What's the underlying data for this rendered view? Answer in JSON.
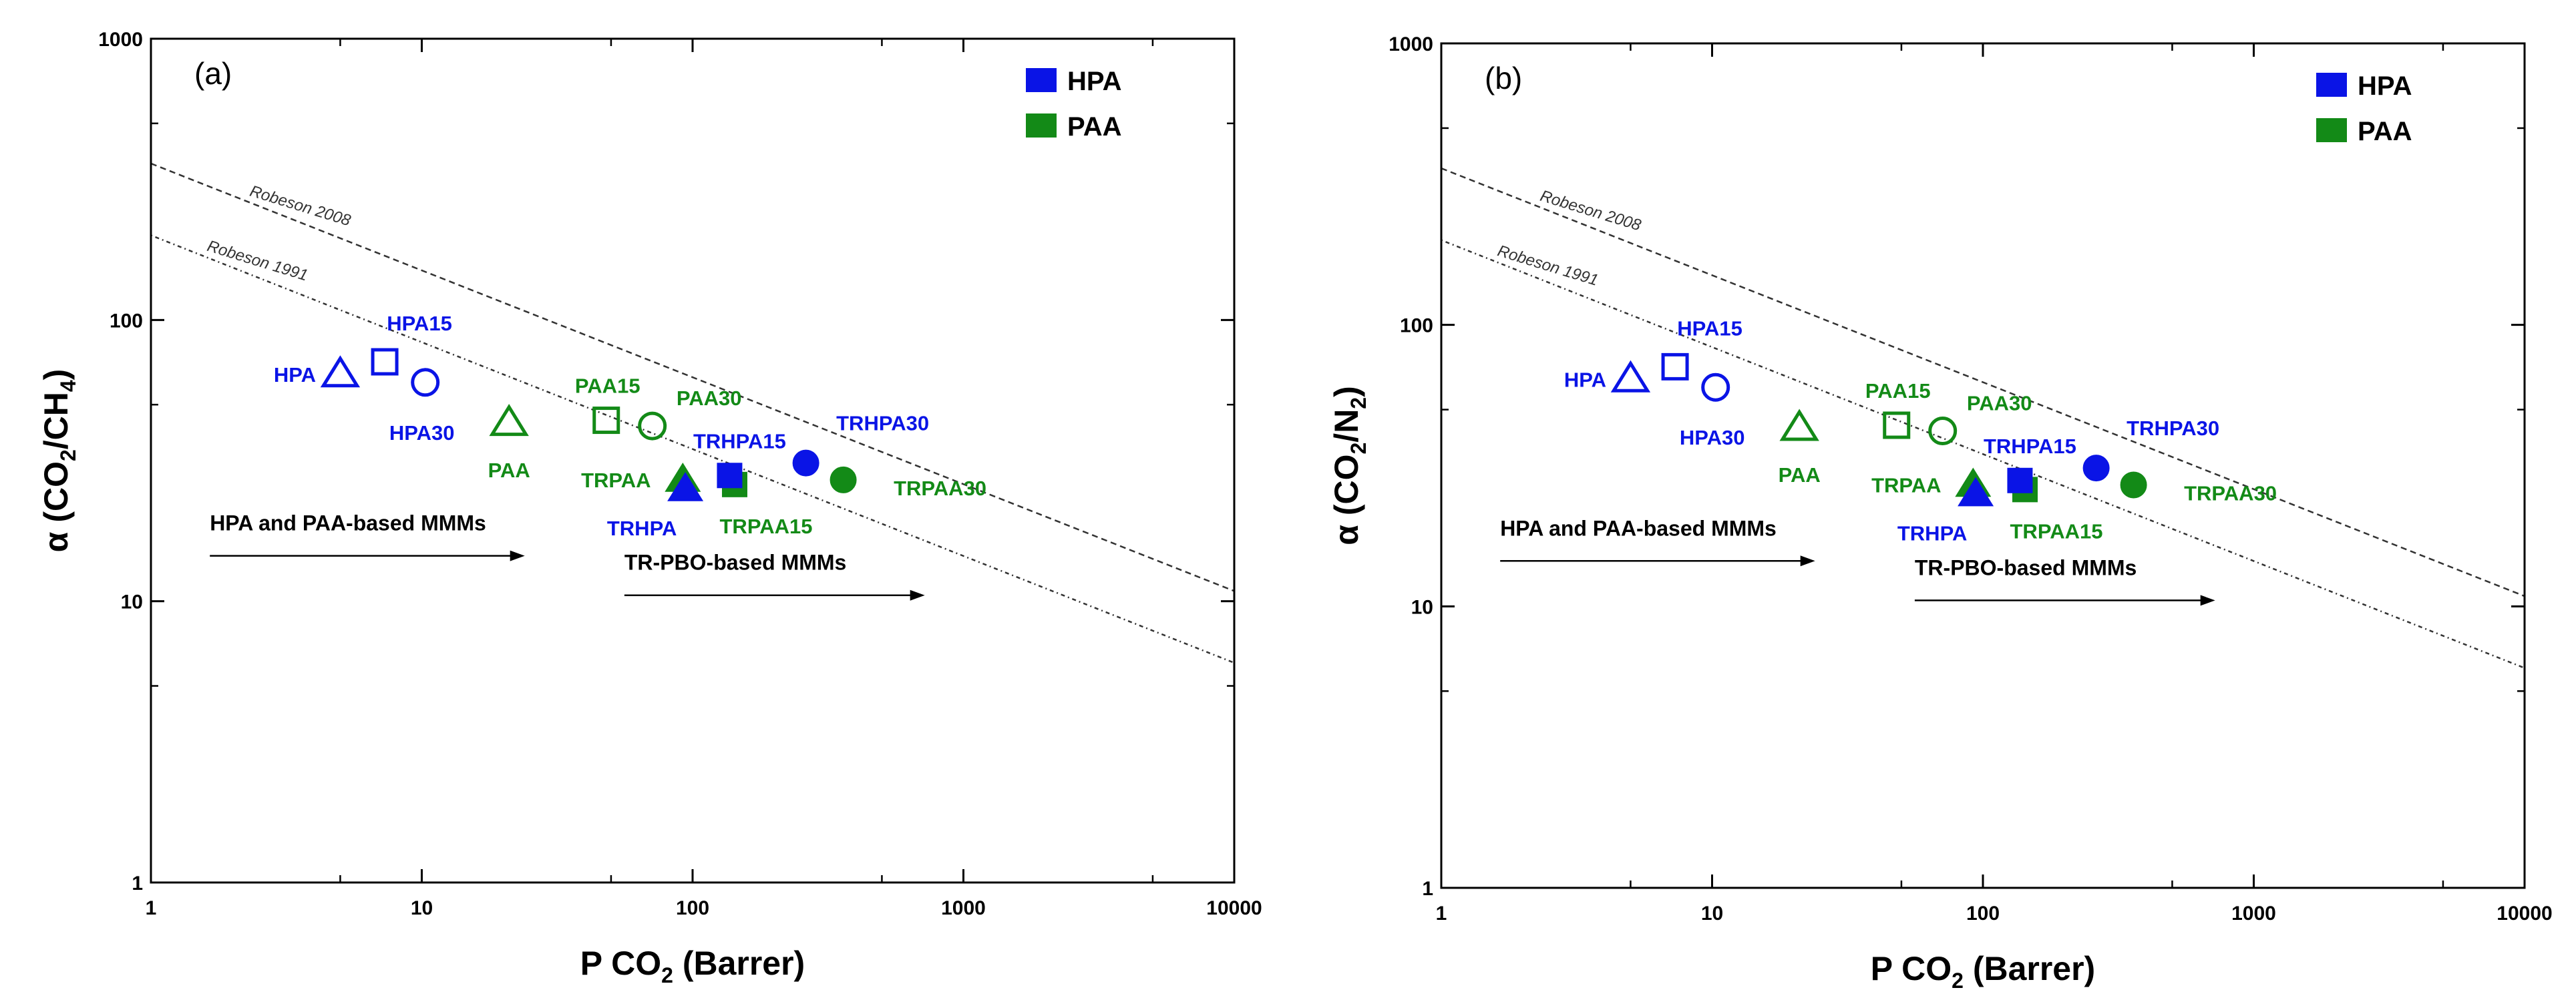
{
  "chart_data": [
    {
      "type": "scatter",
      "panel_label": "(a)",
      "title": "",
      "xlabel": "P CO",
      "xlabel_sub": "2",
      "xlabel_tail": " (Barrer)",
      "ylabel_parts": [
        {
          "t": "α (CO",
          "sub": false
        },
        {
          "t": "2",
          "sub": true
        },
        {
          "t": "/CH",
          "sub": false
        },
        {
          "t": "4",
          "sub": true
        },
        {
          "t": ")",
          "sub": false
        }
      ],
      "xscale": "log",
      "yscale": "log",
      "xlim": [
        1,
        10000
      ],
      "ylim": [
        1,
        1000
      ],
      "xticks": [
        "1",
        "10",
        "100",
        "1000",
        "10000"
      ],
      "yticks": [
        "1",
        "10",
        "100",
        "1000"
      ],
      "grid": false,
      "legend_position": "top-right",
      "legend": [
        {
          "label": "HPA",
          "color": "#0a14e6"
        },
        {
          "label": "PAA",
          "color": "#138a17"
        }
      ],
      "upper_bounds": [
        {
          "label": "Robeson 2008",
          "style": "dashed",
          "k": 360,
          "n": 0.38
        },
        {
          "label": "Robeson 1991",
          "style": "dotted",
          "k": 200,
          "n": 0.38
        }
      ],
      "points": [
        {
          "name": "HPA",
          "x": 5.0,
          "y": 64,
          "marker": "triangle",
          "filled": false,
          "color": "#0a14e6"
        },
        {
          "name": "HPA15",
          "x": 7.3,
          "y": 71,
          "marker": "square",
          "filled": false,
          "color": "#0a14e6"
        },
        {
          "name": "HPA30",
          "x": 10.3,
          "y": 60,
          "marker": "circle",
          "filled": false,
          "color": "#0a14e6"
        },
        {
          "name": "PAA",
          "x": 21,
          "y": 43,
          "marker": "triangle",
          "filled": false,
          "color": "#138a17"
        },
        {
          "name": "PAA15",
          "x": 48,
          "y": 44,
          "marker": "square",
          "filled": false,
          "color": "#138a17"
        },
        {
          "name": "PAA30",
          "x": 71,
          "y": 42,
          "marker": "circle",
          "filled": false,
          "color": "#138a17"
        },
        {
          "name": "TRPAA",
          "x": 92,
          "y": 27,
          "marker": "triangle",
          "filled": true,
          "color": "#138a17"
        },
        {
          "name": "TRHPA",
          "x": 94,
          "y": 25,
          "marker": "triangle",
          "filled": true,
          "color": "#0a14e6"
        },
        {
          "name": "TRPAA15",
          "x": 143,
          "y": 26,
          "marker": "square",
          "filled": true,
          "color": "#138a17"
        },
        {
          "name": "TRHPA15",
          "x": 137,
          "y": 28,
          "marker": "square",
          "filled": true,
          "color": "#0a14e6"
        },
        {
          "name": "TRHPA30",
          "x": 262,
          "y": 31,
          "marker": "circle",
          "filled": true,
          "color": "#0a14e6"
        },
        {
          "name": "TRPAA30",
          "x": 360,
          "y": 27,
          "marker": "circle",
          "filled": true,
          "color": "#138a17"
        }
      ],
      "annotations": [
        {
          "text": "HPA and PAA-based MMMs",
          "x_from": 1.65,
          "x_to": 24,
          "y": 14.5
        },
        {
          "text": "TR-PBO-based MMMs",
          "x_from": 56,
          "x_to": 720,
          "y": 10.5
        }
      ]
    },
    {
      "type": "scatter",
      "panel_label": "(b)",
      "title": "",
      "xlabel": "P CO",
      "xlabel_sub": "2",
      "xlabel_tail": " (Barrer)",
      "ylabel_parts": [
        {
          "t": "α (CO",
          "sub": false
        },
        {
          "t": "2",
          "sub": true
        },
        {
          "t": "/N",
          "sub": false
        },
        {
          "t": "2",
          "sub": true
        },
        {
          "t": ")",
          "sub": false
        }
      ],
      "xscale": "log",
      "yscale": "log",
      "xlim": [
        1,
        10000
      ],
      "ylim": [
        1,
        1000
      ],
      "xticks": [
        "1",
        "10",
        "100",
        "1000",
        "10000"
      ],
      "yticks": [
        "1",
        "10",
        "100",
        "1000"
      ],
      "grid": false,
      "legend_position": "top-right",
      "legend": [
        {
          "label": "HPA",
          "color": "#0a14e6"
        },
        {
          "label": "PAA",
          "color": "#138a17"
        }
      ],
      "upper_bounds": [
        {
          "label": "Robeson 2008",
          "style": "dashed",
          "k": 360,
          "n": 0.38
        },
        {
          "label": "Robeson 1991",
          "style": "dotted",
          "k": 200,
          "n": 0.38
        }
      ],
      "points": [
        {
          "name": "HPA",
          "x": 5.0,
          "y": 64,
          "marker": "triangle",
          "filled": false,
          "color": "#0a14e6"
        },
        {
          "name": "HPA15",
          "x": 7.3,
          "y": 71,
          "marker": "square",
          "filled": false,
          "color": "#0a14e6"
        },
        {
          "name": "HPA30",
          "x": 10.3,
          "y": 60,
          "marker": "circle",
          "filled": false,
          "color": "#0a14e6"
        },
        {
          "name": "PAA",
          "x": 21,
          "y": 43,
          "marker": "triangle",
          "filled": false,
          "color": "#138a17"
        },
        {
          "name": "PAA15",
          "x": 48,
          "y": 44,
          "marker": "square",
          "filled": false,
          "color": "#138a17"
        },
        {
          "name": "PAA30",
          "x": 71,
          "y": 42,
          "marker": "circle",
          "filled": false,
          "color": "#138a17"
        },
        {
          "name": "TRPAA",
          "x": 92,
          "y": 27,
          "marker": "triangle",
          "filled": true,
          "color": "#138a17"
        },
        {
          "name": "TRHPA",
          "x": 94,
          "y": 25,
          "marker": "triangle",
          "filled": true,
          "color": "#0a14e6"
        },
        {
          "name": "TRPAA15",
          "x": 143,
          "y": 26,
          "marker": "square",
          "filled": true,
          "color": "#138a17"
        },
        {
          "name": "TRHPA15",
          "x": 137,
          "y": 28,
          "marker": "square",
          "filled": true,
          "color": "#0a14e6"
        },
        {
          "name": "TRHPA30",
          "x": 262,
          "y": 31,
          "marker": "circle",
          "filled": true,
          "color": "#0a14e6"
        },
        {
          "name": "TRPAA30",
          "x": 360,
          "y": 27,
          "marker": "circle",
          "filled": true,
          "color": "#138a17"
        }
      ],
      "annotations": [
        {
          "text": "HPA and PAA-based MMMs",
          "x_from": 1.65,
          "x_to": 24,
          "y": 14.5
        },
        {
          "text": "TR-PBO-based MMMs",
          "x_from": 56,
          "x_to": 720,
          "y": 10.5
        }
      ]
    }
  ]
}
